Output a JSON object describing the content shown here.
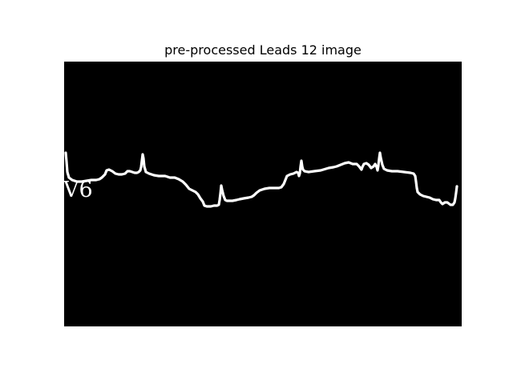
{
  "chart_data": {
    "type": "line",
    "title": "pre-processed Leads 12 image",
    "lead_label": "V6",
    "background_color": "#000000",
    "trace_color": "#ffffff",
    "axes_visible": false,
    "grid": false,
    "x_range": [
      0,
      496
    ],
    "y_range": [
      331,
      0
    ],
    "series": [
      {
        "values": [
          [
            2,
            217
          ],
          [
            3,
            206
          ],
          [
            4,
            193
          ],
          [
            6,
            186
          ],
          [
            10,
            183
          ],
          [
            16,
            181
          ],
          [
            22,
            181
          ],
          [
            28,
            182
          ],
          [
            34,
            183
          ],
          [
            40,
            183
          ],
          [
            44,
            184
          ],
          [
            47,
            186
          ],
          [
            49,
            188
          ],
          [
            51,
            190
          ],
          [
            53,
            195
          ],
          [
            56,
            196
          ],
          [
            60,
            194
          ],
          [
            64,
            191
          ],
          [
            68,
            190
          ],
          [
            72,
            190
          ],
          [
            76,
            191
          ],
          [
            79,
            194
          ],
          [
            82,
            194
          ],
          [
            85,
            193
          ],
          [
            88,
            192
          ],
          [
            91,
            192
          ],
          [
            93,
            193
          ],
          [
            95,
            195
          ],
          [
            96,
            199
          ],
          [
            97,
            207
          ],
          [
            98,
            215
          ],
          [
            99,
            210
          ],
          [
            100,
            200
          ],
          [
            102,
            193
          ],
          [
            106,
            191
          ],
          [
            112,
            189
          ],
          [
            118,
            188
          ],
          [
            126,
            188
          ],
          [
            132,
            186
          ],
          [
            138,
            186
          ],
          [
            143,
            184
          ],
          [
            148,
            181
          ],
          [
            152,
            177
          ],
          [
            156,
            172
          ],
          [
            160,
            170
          ],
          [
            164,
            168
          ],
          [
            167,
            165
          ],
          [
            170,
            160
          ],
          [
            173,
            156
          ],
          [
            175,
            151
          ],
          [
            178,
            150
          ],
          [
            183,
            150
          ],
          [
            187,
            151
          ],
          [
            191,
            151
          ],
          [
            193,
            152
          ],
          [
            194,
            158
          ],
          [
            195,
            166
          ],
          [
            196,
            176
          ],
          [
            197,
            171
          ],
          [
            199,
            163
          ],
          [
            201,
            158
          ],
          [
            203,
            157
          ],
          [
            210,
            157
          ],
          [
            215,
            158
          ],
          [
            219,
            159
          ],
          [
            224,
            160
          ],
          [
            230,
            161
          ],
          [
            234,
            162
          ],
          [
            237,
            164
          ],
          [
            240,
            167
          ],
          [
            244,
            170
          ],
          [
            250,
            172
          ],
          [
            256,
            173
          ],
          [
            262,
            173
          ],
          [
            268,
            173
          ],
          [
            271,
            174
          ],
          [
            274,
            178
          ],
          [
            276,
            183
          ],
          [
            278,
            188
          ],
          [
            282,
            190
          ],
          [
            286,
            191
          ],
          [
            288,
            192
          ],
          [
            290,
            193
          ],
          [
            292,
            192
          ],
          [
            293,
            188
          ],
          [
            294,
            191
          ],
          [
            295,
            200
          ],
          [
            296,
            207
          ],
          [
            297,
            200
          ],
          [
            298,
            196
          ],
          [
            300,
            194
          ],
          [
            305,
            193
          ],
          [
            312,
            194
          ],
          [
            320,
            195
          ],
          [
            330,
            198
          ],
          [
            336,
            199
          ],
          [
            340,
            200
          ],
          [
            345,
            202
          ],
          [
            350,
            204
          ],
          [
            355,
            205
          ],
          [
            360,
            203
          ],
          [
            365,
            203
          ],
          [
            368,
            200
          ],
          [
            371,
            196
          ],
          [
            372,
            199
          ],
          [
            374,
            203
          ],
          [
            377,
            204
          ],
          [
            380,
            202
          ],
          [
            383,
            198
          ],
          [
            386,
            200
          ],
          [
            388,
            203
          ],
          [
            390,
            199
          ],
          [
            391,
            195
          ],
          [
            392,
            201
          ],
          [
            393,
            210
          ],
          [
            394,
            217
          ],
          [
            395,
            211
          ],
          [
            397,
            202
          ],
          [
            399,
            197
          ],
          [
            403,
            195
          ],
          [
            409,
            194
          ],
          [
            416,
            194
          ],
          [
            424,
            193
          ],
          [
            432,
            192
          ],
          [
            436,
            191
          ],
          [
            438,
            188
          ],
          [
            439,
            181
          ],
          [
            440,
            173
          ],
          [
            441,
            168
          ],
          [
            444,
            165
          ],
          [
            448,
            163
          ],
          [
            452,
            162
          ],
          [
            456,
            161
          ],
          [
            460,
            159
          ],
          [
            464,
            158
          ],
          [
            468,
            158
          ],
          [
            470,
            155
          ],
          [
            472,
            153
          ],
          [
            475,
            155
          ],
          [
            478,
            155
          ],
          [
            482,
            152
          ],
          [
            485,
            152
          ],
          [
            487,
            155
          ],
          [
            488,
            160
          ],
          [
            489,
            167
          ],
          [
            490,
            175
          ]
        ]
      }
    ]
  }
}
